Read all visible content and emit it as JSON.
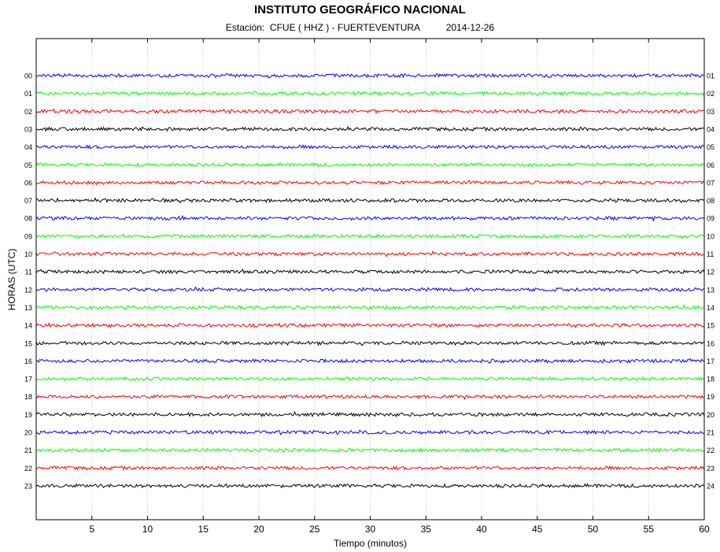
{
  "header": {
    "title": "INSTITUTO GEOGRÁFICO NACIONAL",
    "station_label": "Estación:",
    "station": "CFUE ( HHZ ) - FUERTEVENTURA",
    "date": "2014-12-26"
  },
  "chart_data": {
    "type": "line",
    "title": "INSTITUTO GEOGRÁFICO NACIONAL",
    "subtitle": "Estación:  CFUE ( HHZ ) - FUERTEVENTURA   2014-12-26",
    "xlabel": "Tiempo (minutos)",
    "ylabel": "HORAS (UTC)",
    "xlim": [
      0,
      60
    ],
    "x_ticks": [
      5,
      10,
      15,
      20,
      25,
      30,
      35,
      40,
      45,
      50,
      55,
      60
    ],
    "grid": "vertical",
    "left_hour_labels": [
      "00",
      "01",
      "02",
      "03",
      "04",
      "05",
      "06",
      "07",
      "08",
      "09",
      "10",
      "11",
      "12",
      "13",
      "14",
      "15",
      "16",
      "17",
      "18",
      "19",
      "20",
      "21",
      "22",
      "23"
    ],
    "right_hour_labels": [
      "01",
      "02",
      "03",
      "04",
      "05",
      "06",
      "07",
      "08",
      "09",
      "10",
      "11",
      "12",
      "13",
      "14",
      "15",
      "16",
      "17",
      "18",
      "19",
      "20",
      "21",
      "22",
      "23",
      "24"
    ],
    "trace_colors": [
      "#0000ff",
      "#00ff00",
      "#ff0000",
      "#000000"
    ],
    "series_count": 24
  }
}
